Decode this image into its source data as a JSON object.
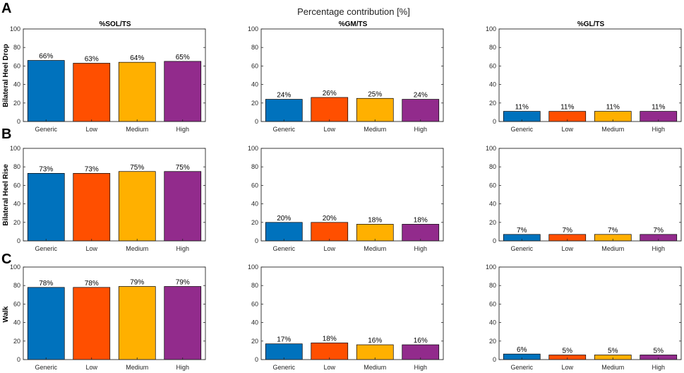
{
  "figure": {
    "title": "Percentage contribution [%]",
    "panel_letters": [
      "A",
      "B",
      "C"
    ],
    "row_labels": [
      "Bilateral Heel Drop",
      "Bilateral Heel Rise",
      "Walk"
    ],
    "column_titles": [
      "%SOL/TS",
      "%GM/TS",
      "%GL/TS"
    ]
  },
  "colors": {
    "Generic": "#0072BD",
    "Low": "#FF4F00",
    "Medium": "#FFB000",
    "High": "#922B8C"
  },
  "chart_data": [
    {
      "type": "bar",
      "row": 0,
      "col": 0,
      "title": "%SOL/TS",
      "ylabel": "Bilateral Heel Drop",
      "categories": [
        "Generic",
        "Low",
        "Medium",
        "High"
      ],
      "values": [
        66,
        63,
        64,
        65
      ],
      "labels": [
        "66%",
        "63%",
        "64%",
        "65%"
      ],
      "ylim": [
        0,
        100
      ],
      "yticks": [
        0,
        20,
        40,
        60,
        80,
        100
      ]
    },
    {
      "type": "bar",
      "row": 0,
      "col": 1,
      "title": "%GM/TS",
      "ylabel": "",
      "categories": [
        "Generic",
        "Low",
        "Medium",
        "High"
      ],
      "values": [
        24,
        26,
        25,
        24
      ],
      "labels": [
        "24%",
        "26%",
        "25%",
        "24%"
      ],
      "ylim": [
        0,
        100
      ],
      "yticks": [
        0,
        20,
        40,
        60,
        80,
        100
      ]
    },
    {
      "type": "bar",
      "row": 0,
      "col": 2,
      "title": "%GL/TS",
      "ylabel": "",
      "categories": [
        "Generic",
        "Low",
        "Medium",
        "High"
      ],
      "values": [
        11,
        11,
        11,
        11
      ],
      "labels": [
        "11%",
        "11%",
        "11%",
        "11%"
      ],
      "ylim": [
        0,
        100
      ],
      "yticks": [
        0,
        20,
        40,
        60,
        80,
        100
      ]
    },
    {
      "type": "bar",
      "row": 1,
      "col": 0,
      "title": "",
      "ylabel": "Bilateral Heel Rise",
      "categories": [
        "Generic",
        "Low",
        "Medium",
        "High"
      ],
      "values": [
        73,
        73,
        75,
        75
      ],
      "labels": [
        "73%",
        "73%",
        "75%",
        "75%"
      ],
      "ylim": [
        0,
        100
      ],
      "yticks": [
        0,
        20,
        40,
        60,
        80,
        100
      ]
    },
    {
      "type": "bar",
      "row": 1,
      "col": 1,
      "title": "",
      "ylabel": "",
      "categories": [
        "Generic",
        "Low",
        "Medium",
        "High"
      ],
      "values": [
        20,
        20,
        18,
        18
      ],
      "labels": [
        "20%",
        "20%",
        "18%",
        "18%"
      ],
      "ylim": [
        0,
        100
      ],
      "yticks": [
        0,
        20,
        40,
        60,
        80,
        100
      ]
    },
    {
      "type": "bar",
      "row": 1,
      "col": 2,
      "title": "",
      "ylabel": "",
      "categories": [
        "Generic",
        "Low",
        "Medium",
        "High"
      ],
      "values": [
        7,
        7,
        7,
        7
      ],
      "labels": [
        "7%",
        "7%",
        "7%",
        "7%"
      ],
      "ylim": [
        0,
        100
      ],
      "yticks": [
        0,
        20,
        40,
        60,
        80,
        100
      ]
    },
    {
      "type": "bar",
      "row": 2,
      "col": 0,
      "title": "",
      "ylabel": "Walk",
      "categories": [
        "Generic",
        "Low",
        "Medium",
        "High"
      ],
      "values": [
        78,
        78,
        79,
        79
      ],
      "labels": [
        "78%",
        "78%",
        "79%",
        "79%"
      ],
      "ylim": [
        0,
        100
      ],
      "yticks": [
        0,
        20,
        40,
        60,
        80,
        100
      ]
    },
    {
      "type": "bar",
      "row": 2,
      "col": 1,
      "title": "",
      "ylabel": "",
      "categories": [
        "Generic",
        "Low",
        "Medium",
        "High"
      ],
      "values": [
        17,
        18,
        16,
        16
      ],
      "labels": [
        "17%",
        "18%",
        "16%",
        "16%"
      ],
      "ylim": [
        0,
        100
      ],
      "yticks": [
        0,
        20,
        40,
        60,
        80,
        100
      ]
    },
    {
      "type": "bar",
      "row": 2,
      "col": 2,
      "title": "",
      "ylabel": "",
      "categories": [
        "Generic",
        "Low",
        "Medium",
        "High"
      ],
      "values": [
        6,
        5,
        5,
        5
      ],
      "labels": [
        "6%",
        "5%",
        "5%",
        "5%"
      ],
      "ylim": [
        0,
        100
      ],
      "yticks": [
        0,
        20,
        40,
        60,
        80,
        100
      ]
    }
  ]
}
